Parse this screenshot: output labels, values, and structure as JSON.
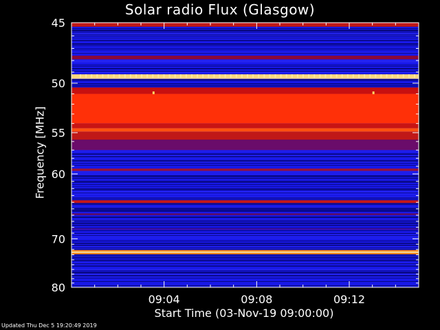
{
  "chart_data": {
    "type": "heatmap",
    "title": "Solar radio Flux (Glasgow)",
    "ylabel": "Frequency [MHz]",
    "xlabel": "Start Time (03-Nov-19 09:00:00)",
    "y_ticks": [
      45,
      50,
      55,
      60,
      70,
      80
    ],
    "y_axis_inverted": true,
    "x_ticks": [
      "09:04",
      "09:08",
      "09:12"
    ],
    "x_range_minutes": [
      0,
      15
    ],
    "x_tick_minutes": [
      4,
      8,
      12
    ],
    "bands_mhz": [
      {
        "from": 45.0,
        "to": 45.3,
        "color": "#c01818"
      },
      {
        "from": 47.6,
        "to": 47.9,
        "color": "#8a0a3a"
      },
      {
        "from": 49.2,
        "to": 49.6,
        "color": "#ffd880"
      },
      {
        "from": 50.4,
        "to": 51.0,
        "color": "#c81010"
      },
      {
        "from": 51.0,
        "to": 54.0,
        "color": "#ff3008"
      },
      {
        "from": 54.0,
        "to": 54.5,
        "color": "#c81414"
      },
      {
        "from": 54.5,
        "to": 54.9,
        "color": "#ff5010"
      },
      {
        "from": 54.9,
        "to": 55.8,
        "color": "#c01818"
      },
      {
        "from": 55.8,
        "to": 57.0,
        "color": "#6a0c6a"
      },
      {
        "from": 59.3,
        "to": 59.6,
        "color": "#9a1438"
      },
      {
        "from": 63.7,
        "to": 64.1,
        "color": "#c81818"
      },
      {
        "from": 65.7,
        "to": 66.0,
        "color": "#5a0c6a"
      },
      {
        "from": 68.2,
        "to": 68.4,
        "color": "#4a0c8a"
      },
      {
        "from": 72.1,
        "to": 72.4,
        "color": "#ff8c10"
      },
      {
        "from": 72.4,
        "to": 72.6,
        "color": "#fff8c8"
      },
      {
        "from": 72.6,
        "to": 72.9,
        "color": "#ff8c10"
      }
    ],
    "colors": {
      "background": "#1818e8",
      "dark_band": "#0a0a8c",
      "axis": "#ffffff"
    }
  },
  "footer_text": "Updated Thu Dec  5 19:20:49 2019"
}
